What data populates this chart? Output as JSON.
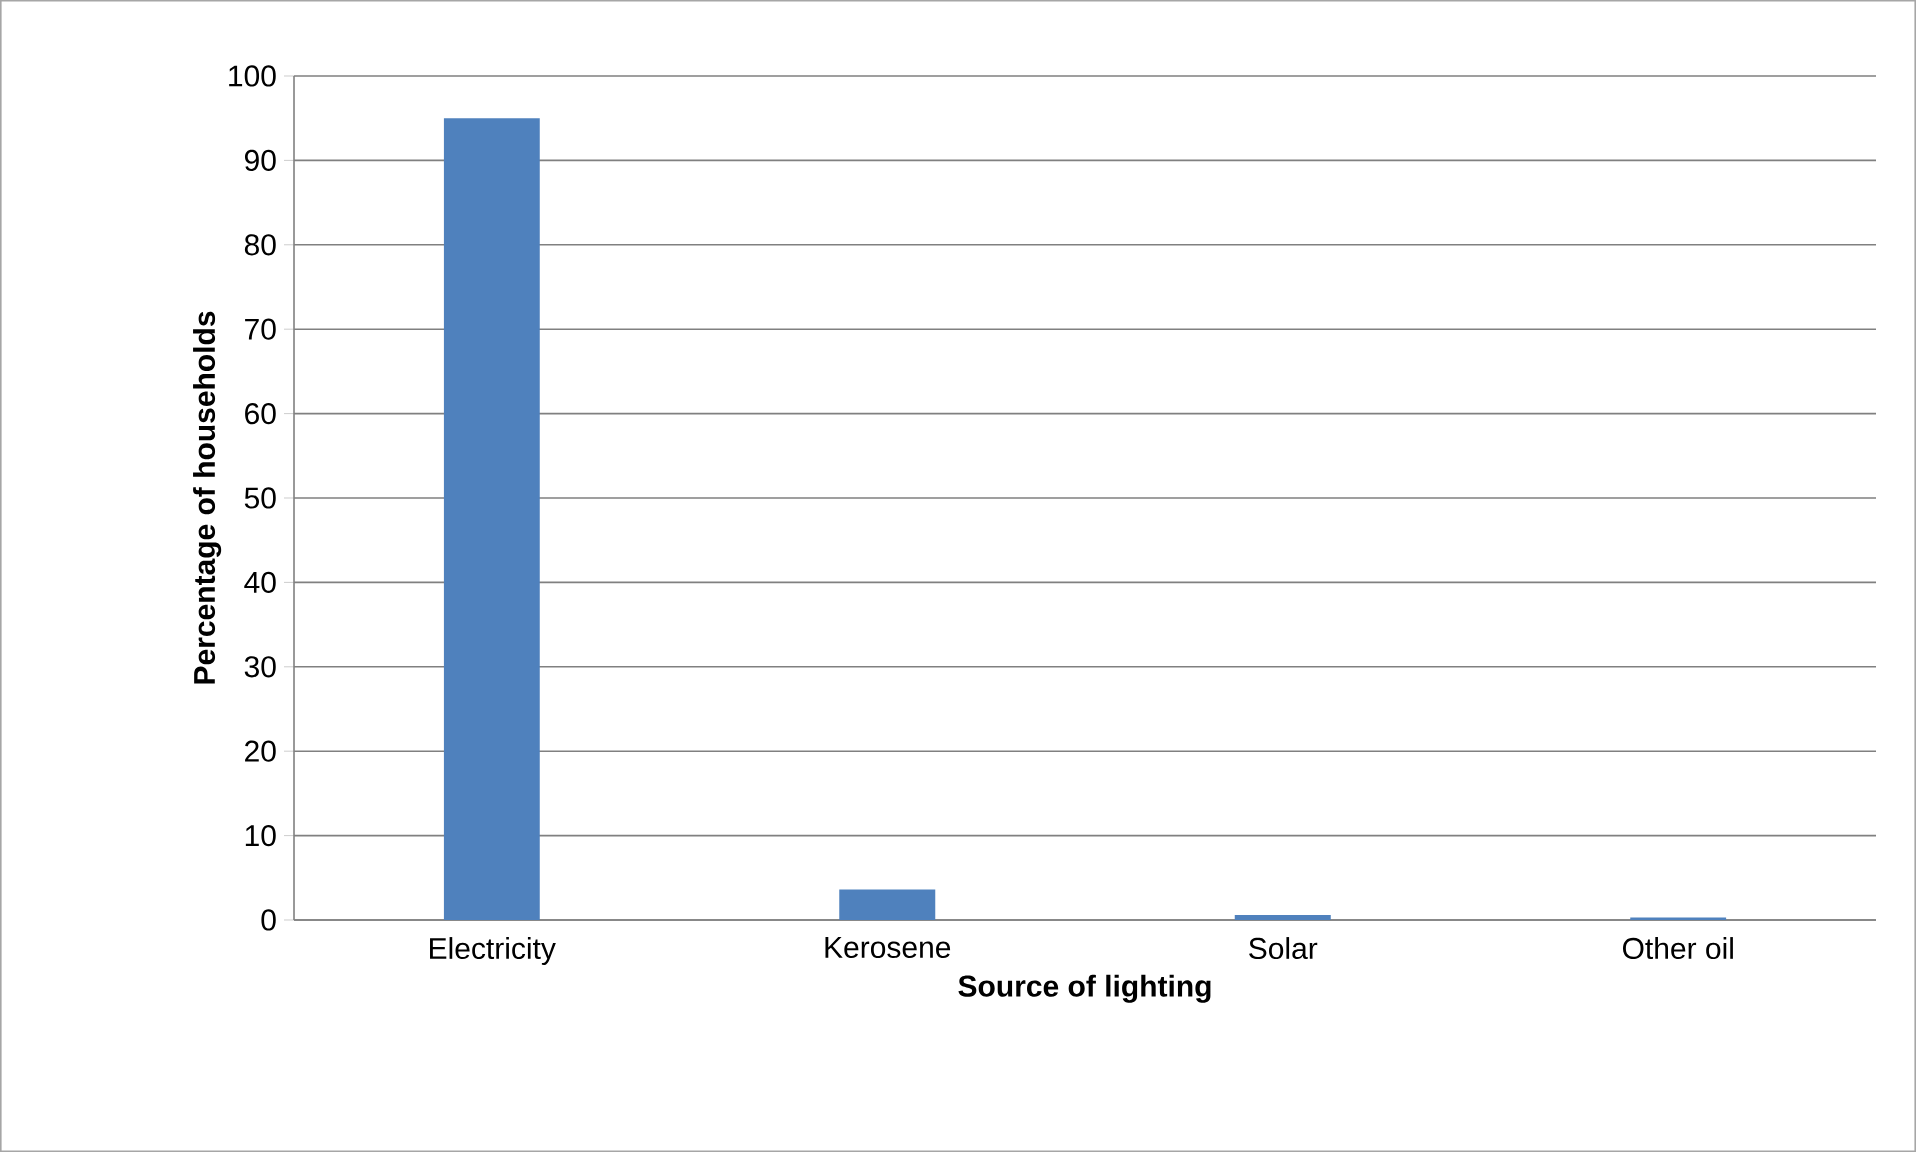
{
  "chart_data": {
    "type": "bar",
    "xlabel": "Source of lighting",
    "ylabel": "Percentage of households",
    "categories": [
      "Electricity",
      "Kerosene",
      "Solar",
      "Other oil"
    ],
    "values": [
      95,
      3.6,
      0.6,
      0.3
    ],
    "color": "#4f81bd",
    "ylim": [
      0,
      100
    ],
    "yticks": [
      0,
      10,
      20,
      30,
      40,
      50,
      60,
      70,
      80,
      90,
      100
    ],
    "grid": "y"
  }
}
